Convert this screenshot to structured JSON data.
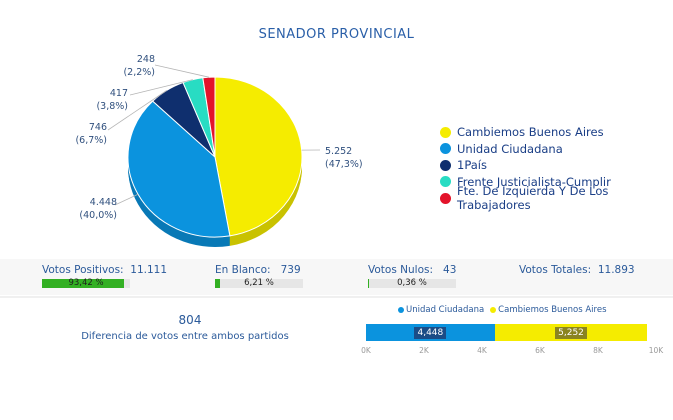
{
  "title": "SENADOR PROVINCIAL",
  "chart_data": [
    {
      "type": "pie",
      "title": "SENADOR PROVINCIAL",
      "series": [
        {
          "name": "Cambiemos Buenos Aires",
          "value": 5252,
          "label": "5.252",
          "pct": "(47,3%)",
          "color": "#f5ec00"
        },
        {
          "name": "Unidad Ciudadana",
          "value": 4448,
          "label": "4.448",
          "pct": "(40,0%)",
          "color": "#0b93de"
        },
        {
          "name": "1País",
          "value": 746,
          "label": "746",
          "pct": "(6,7%)",
          "color": "#0f2f6e"
        },
        {
          "name": "Frente Justicialista-Cumplir",
          "value": 417,
          "label": "417",
          "pct": "(3,8%)",
          "color": "#28dcc3"
        },
        {
          "name": "Fte. De Izquierda Y De Los Trabajadores",
          "value": 248,
          "label": "248",
          "pct": "(2,2%)",
          "color": "#e3132a"
        }
      ],
      "legend": "right"
    },
    {
      "type": "bar",
      "orientation": "horizontal-stacked",
      "series": [
        {
          "name": "Unidad Ciudadana",
          "values": [
            4448
          ],
          "label": "4,448",
          "color": "#0b93de"
        },
        {
          "name": "Cambiemos Buenos Aires",
          "values": [
            5252
          ],
          "label": "5,252",
          "color": "#f5ec00"
        }
      ],
      "xlim": [
        0,
        10000
      ],
      "xticks": [
        "0K",
        "2K",
        "4K",
        "6K",
        "8K",
        "10K"
      ],
      "legend": "top"
    }
  ],
  "stats": {
    "positivos": {
      "label": "Votos Positivos:",
      "value": "11.111",
      "pct_label": "93,42 %",
      "pct": 93.42
    },
    "blanco": {
      "label": "En Blanco:",
      "value": "739",
      "pct_label": "6,21 %",
      "pct": 6.21
    },
    "nulos": {
      "label": "Votos Nulos:",
      "value": "43",
      "pct_label": "0,36 %",
      "pct": 0.36
    },
    "totales": {
      "label": "Votos Totales:",
      "value": "11.893"
    }
  },
  "difference": {
    "value": "804",
    "label": "Diferencia de votos entre ambos partidos"
  }
}
